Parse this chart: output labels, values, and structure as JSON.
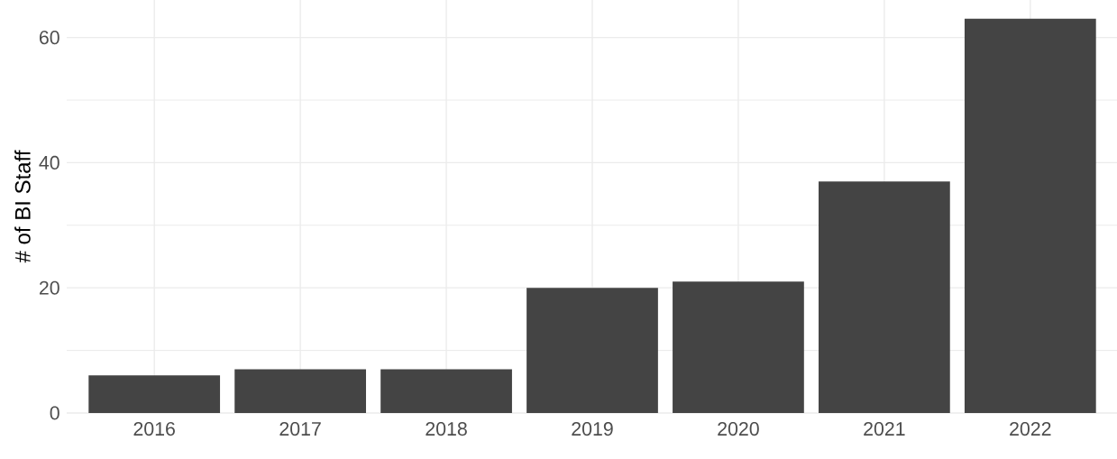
{
  "chart_data": {
    "type": "bar",
    "ylabel": "# of BI Staff",
    "categories": [
      "2016",
      "2017",
      "2018",
      "2019",
      "2020",
      "2021",
      "2022"
    ],
    "values": [
      6,
      7,
      7,
      20,
      21,
      37,
      63
    ],
    "color": "#444444",
    "ylim": [
      0,
      66
    ],
    "yticks": [
      0,
      20,
      40,
      60
    ],
    "grid": true
  }
}
